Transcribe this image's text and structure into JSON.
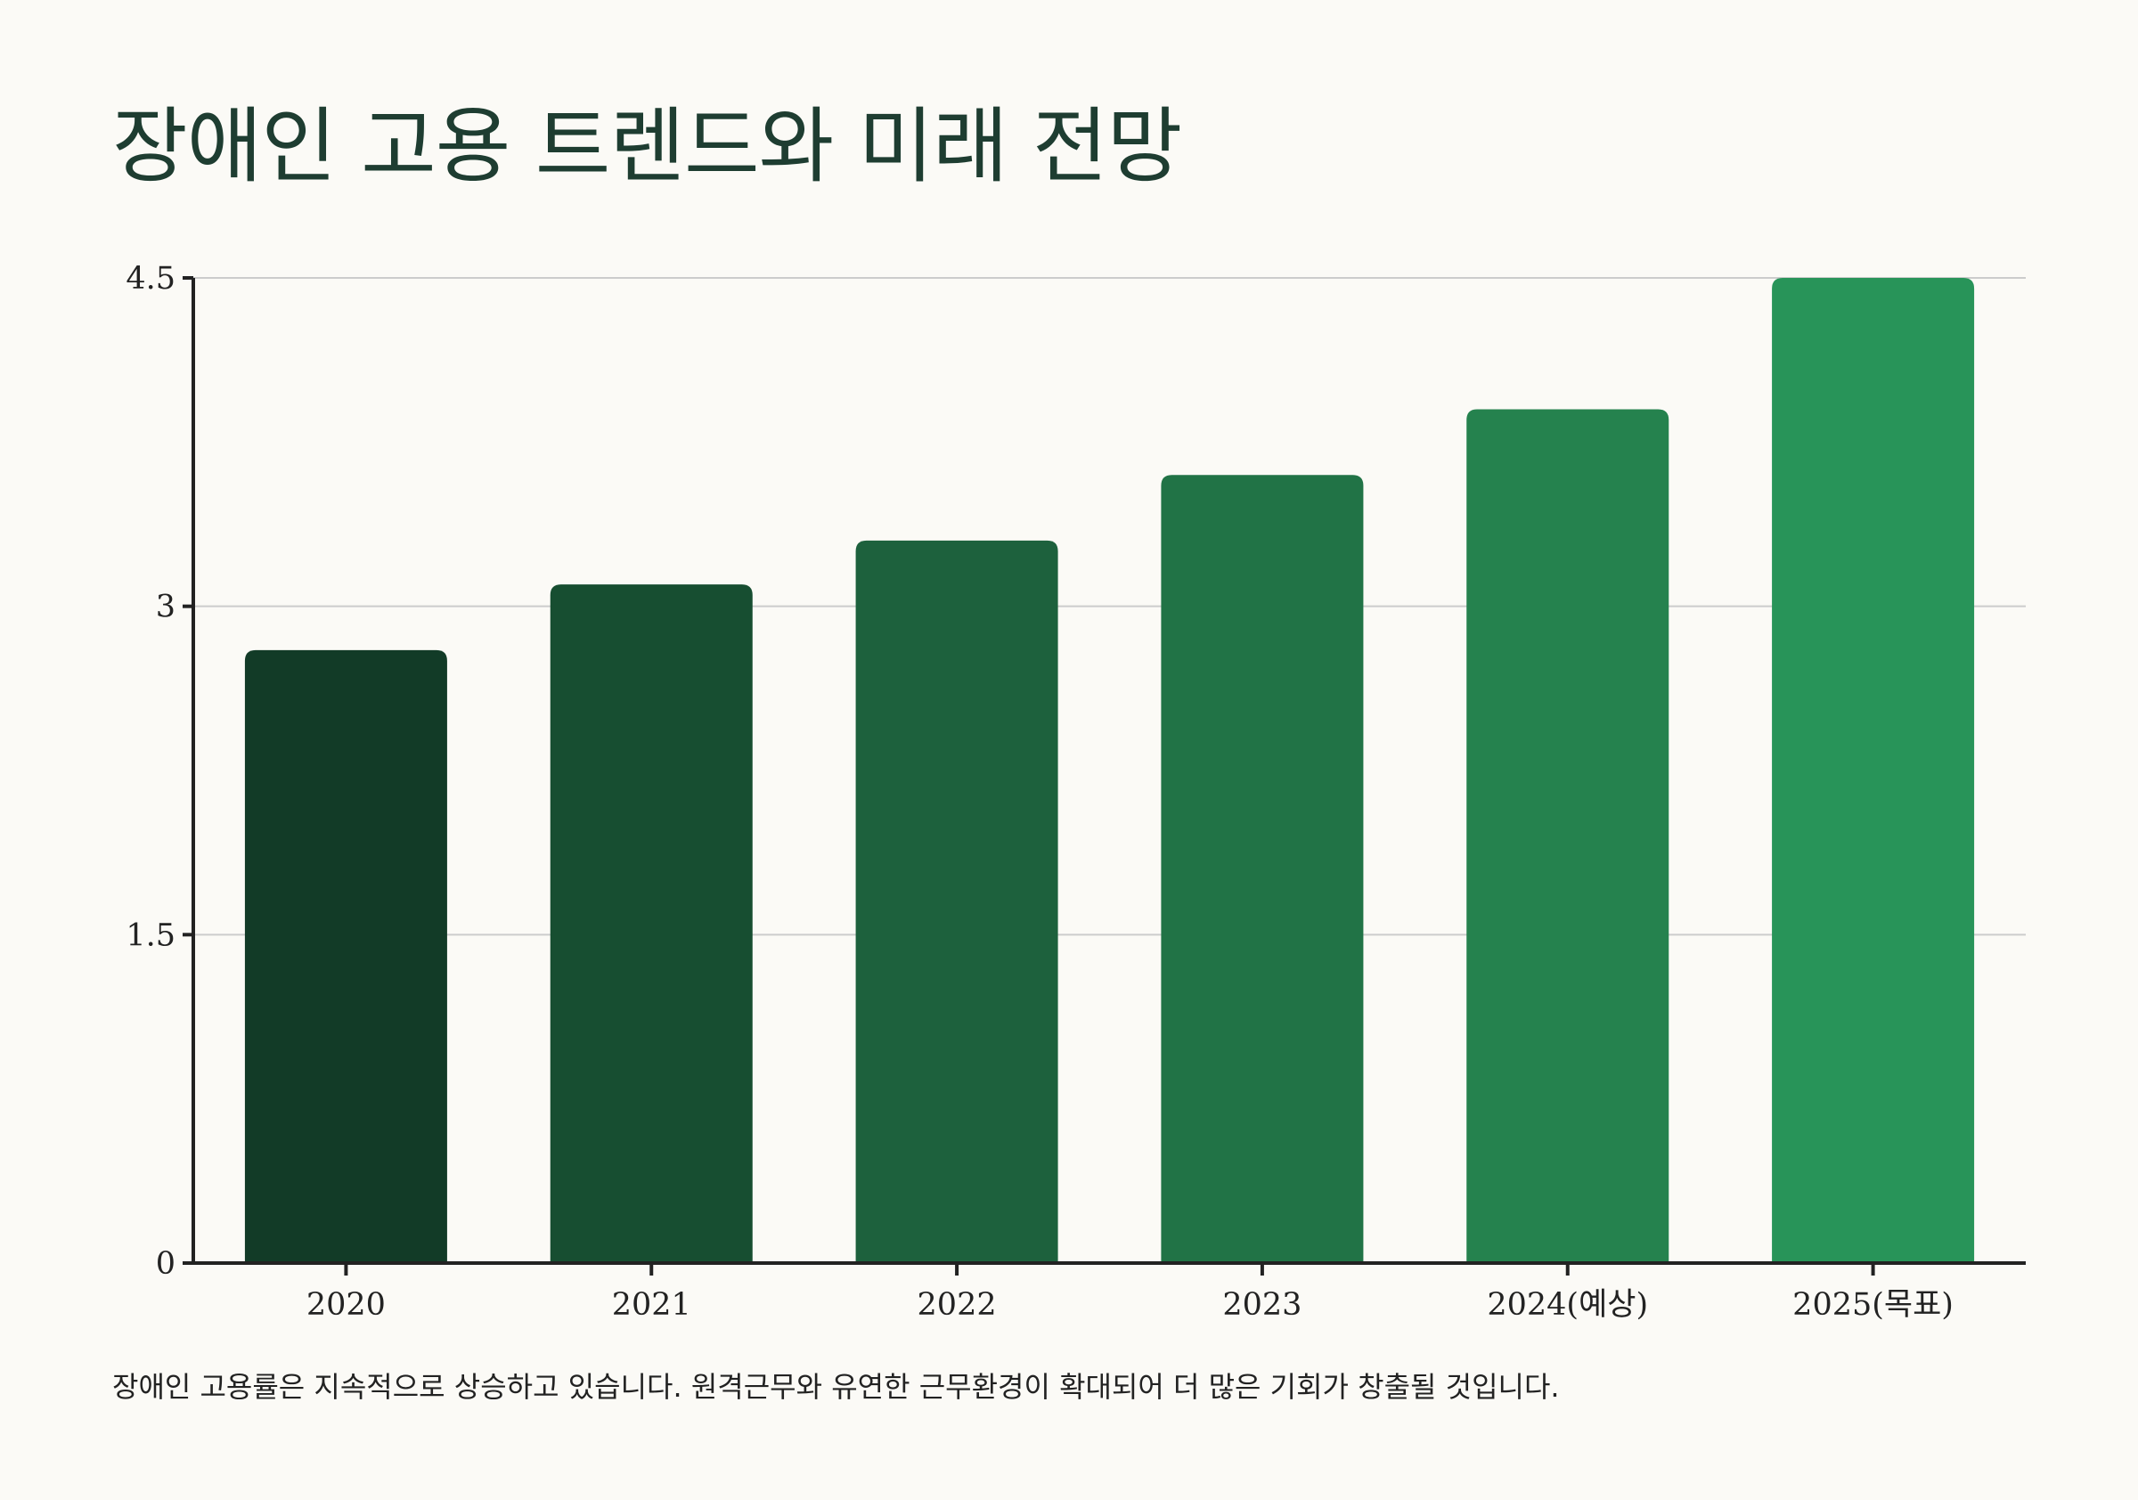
{
  "title": "장애인 고용 트렌드와 미래 전망",
  "caption": "장애인 고용률은 지속적으로 상승하고 있습니다. 원격근무와 유연한 근무환경이 확대되어 더 많은 기회가 창출될 것입니다.",
  "chart_data": {
    "type": "bar",
    "title": "장애인 고용 트렌드와 미래 전망",
    "xlabel": "",
    "ylabel": "",
    "categories": [
      "2020",
      "2021",
      "2022",
      "2023",
      "2024(예상)",
      "2025(목표)"
    ],
    "values": [
      2.8,
      3.1,
      3.3,
      3.6,
      3.9,
      4.5
    ],
    "ylim": [
      0,
      4.5
    ],
    "yticks": [
      "0",
      "1.5",
      "3",
      "4.5"
    ],
    "grid": true,
    "legend": "none",
    "bar_colors": [
      "#123b27",
      "#174e31",
      "#1d613d",
      "#217346",
      "#25824e",
      "#289459"
    ],
    "grid_color": "#cccccc",
    "axis_color": "#222222"
  }
}
